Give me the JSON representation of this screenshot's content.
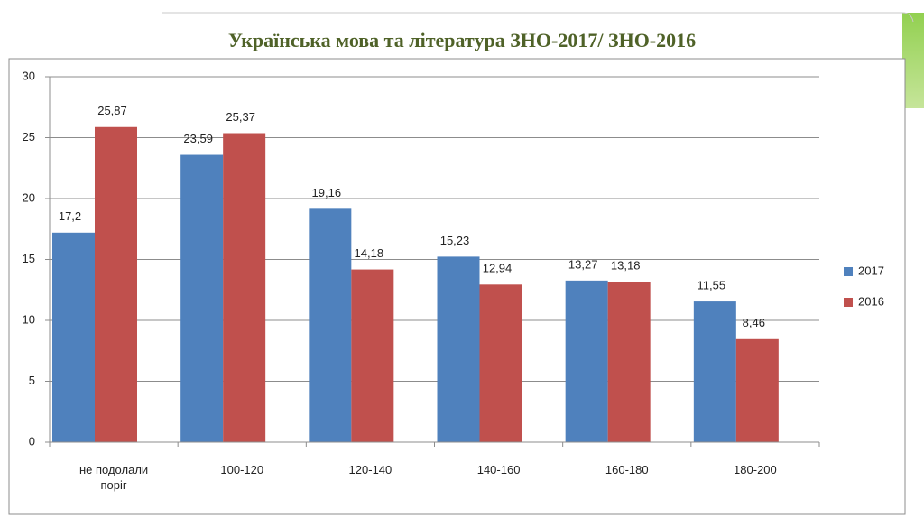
{
  "chart_data": {
    "type": "bar",
    "title": "Українська мова та література ЗНО-2017/ ЗНО-2016",
    "categories": [
      "не подолали поріг",
      "100-120",
      "120-140",
      "140-160",
      "160-180",
      "180-200"
    ],
    "series": [
      {
        "name": "2017",
        "color": "#4f81bd",
        "values": [
          17.2,
          23.59,
          19.16,
          15.23,
          13.27,
          11.55
        ],
        "value_labels": [
          "17,2",
          "23,59",
          "19,16",
          "15,23",
          "13,27",
          "11,55"
        ]
      },
      {
        "name": "2016",
        "color": "#c0504d",
        "values": [
          25.87,
          25.37,
          14.18,
          12.94,
          13.18,
          8.46
        ],
        "value_labels": [
          "25,87",
          "25,37",
          "14,18",
          "12,94",
          "13,18",
          "8,46"
        ]
      }
    ],
    "ylim": [
      0,
      30
    ],
    "yticks": [
      0,
      5,
      10,
      15,
      20,
      25,
      30
    ],
    "grid": true,
    "legend": "right"
  }
}
